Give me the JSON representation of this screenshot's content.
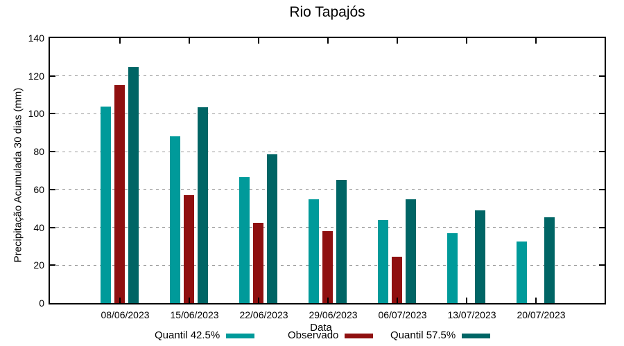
{
  "title": "Rio Tapajós",
  "chart_data": {
    "type": "bar",
    "title": "Rio Tapajós",
    "xlabel": "Data",
    "ylabel": "Precipitação Acumulada 30 dias (mm)",
    "ylim": [
      0,
      140
    ],
    "yticks": [
      0,
      20,
      40,
      60,
      80,
      100,
      120,
      140
    ],
    "grid": true,
    "grid_color": "#999999",
    "legend_position": "bottom-center",
    "categories": [
      "08/06/2023",
      "15/06/2023",
      "22/06/2023",
      "29/06/2023",
      "06/07/2023",
      "13/07/2023",
      "20/07/2023"
    ],
    "series": [
      {
        "name": "Quantil 42.5%",
        "color": "#009A9A",
        "values": [
          104,
          88,
          66.5,
          55,
          44,
          37,
          32.5
        ]
      },
      {
        "name": "Observado",
        "color": "#8F1010",
        "values": [
          115,
          57,
          42.5,
          38,
          24.5,
          null,
          null
        ]
      },
      {
        "name": "Quantil 57.5%",
        "color": "#006565",
        "values": [
          124.5,
          103.5,
          78.5,
          65,
          55,
          49,
          45.5
        ]
      }
    ]
  }
}
